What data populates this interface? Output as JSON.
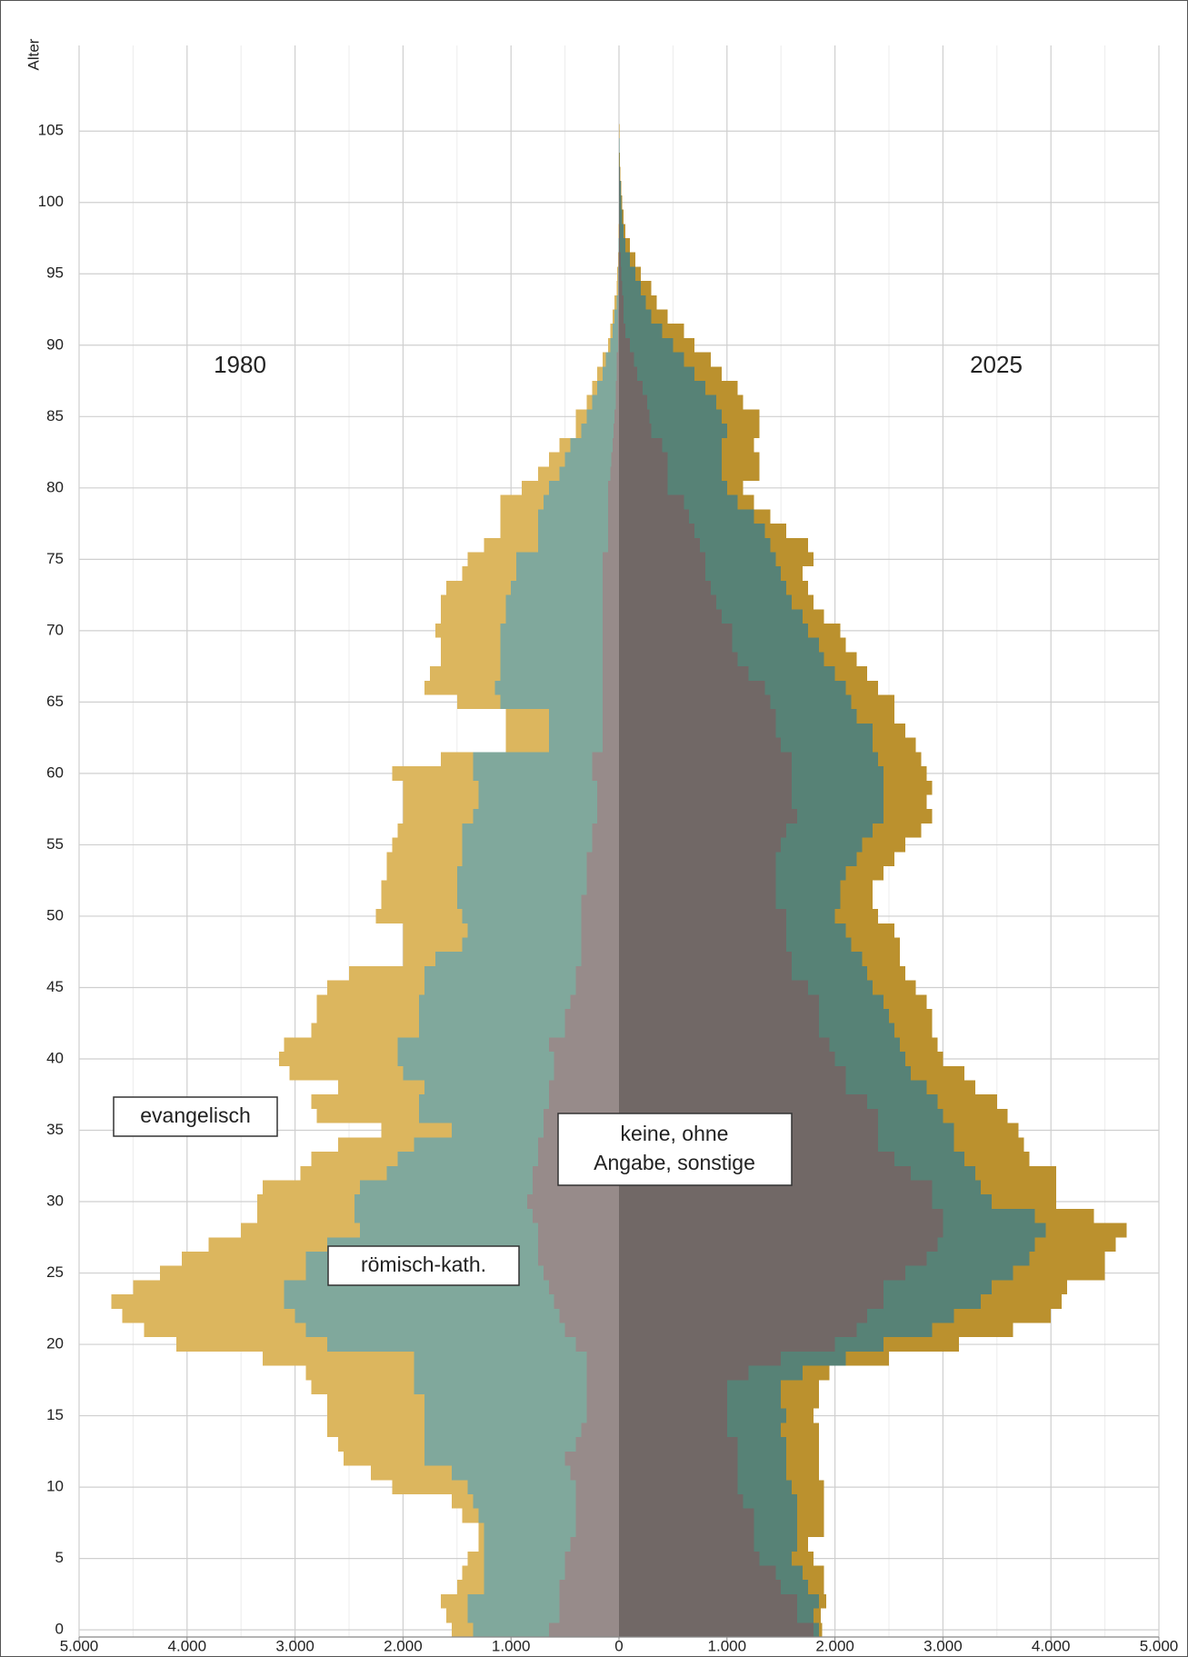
{
  "chart_data": {
    "type": "pyramid",
    "y_label": "Alter",
    "ylim": [
      -0.5,
      111
    ],
    "yticks": [
      0,
      5,
      10,
      15,
      20,
      25,
      30,
      35,
      40,
      45,
      50,
      55,
      60,
      65,
      70,
      75,
      80,
      85,
      90,
      95,
      100,
      105
    ],
    "xlim": [
      -5000,
      5000
    ],
    "xticks": [
      {
        "value": -5000,
        "label": "5.000"
      },
      {
        "value": -4000,
        "label": "4.000"
      },
      {
        "value": -3000,
        "label": "3.000"
      },
      {
        "value": -2000,
        "label": "2.000"
      },
      {
        "value": -1000,
        "label": "1.000"
      },
      0,
      {
        "value": 1000,
        "label": "1.000"
      },
      {
        "value": 2000,
        "label": "2.000"
      },
      {
        "value": 3000,
        "label": "3.000"
      },
      {
        "value": 4000,
        "label": "4.000"
      },
      {
        "value": 5000,
        "label": "5.000"
      }
    ],
    "x_minor_ticks": [
      -4500,
      -3500,
      -2500,
      -1500,
      -500,
      500,
      1500,
      2500,
      3500,
      4500
    ],
    "grid": true,
    "series": [
      {
        "name": [
          "keine, ohne",
          "Angabe, sonstige"
        ]
      },
      {
        "name": "römisch-kath."
      },
      {
        "name": "evangelisch"
      }
    ],
    "y": [
      0,
      1,
      2,
      3,
      4,
      5,
      6,
      7,
      8,
      9,
      10,
      11,
      12,
      13,
      14,
      15,
      16,
      17,
      18,
      19,
      20,
      21,
      22,
      23,
      24,
      25,
      26,
      27,
      28,
      29,
      30,
      31,
      32,
      33,
      34,
      35,
      36,
      37,
      38,
      39,
      40,
      41,
      42,
      43,
      44,
      45,
      46,
      47,
      48,
      49,
      50,
      51,
      52,
      53,
      54,
      55,
      56,
      57,
      58,
      59,
      60,
      61,
      62,
      63,
      64,
      65,
      66,
      67,
      68,
      69,
      70,
      71,
      72,
      73,
      74,
      75,
      76,
      77,
      78,
      79,
      80,
      81,
      82,
      83,
      84,
      85,
      86,
      87,
      88,
      89,
      90,
      91,
      92,
      93,
      94,
      95,
      96,
      97,
      98,
      99,
      100,
      101,
      102,
      103,
      104,
      105,
      106
    ],
    "panels": [
      {
        "label": "1980",
        "side": "left",
        "colors": [
          "#978b8a",
          "#80a89c",
          "#dcb65e"
        ],
        "values": [
          [
            650,
            550,
            550,
            550,
            500,
            500,
            450,
            400,
            400,
            400,
            400,
            450,
            500,
            400,
            350,
            300,
            300,
            300,
            300,
            300,
            400,
            500,
            550,
            600,
            650,
            700,
            750,
            750,
            750,
            800,
            850,
            800,
            800,
            750,
            750,
            700,
            700,
            650,
            650,
            600,
            600,
            650,
            500,
            500,
            450,
            400,
            400,
            350,
            350,
            350,
            350,
            350,
            300,
            300,
            300,
            250,
            250,
            200,
            200,
            200,
            250,
            250,
            150,
            150,
            150,
            150,
            150,
            150,
            150,
            150,
            150,
            150,
            150,
            150,
            150,
            150,
            100,
            100,
            100,
            100,
            100,
            80,
            70,
            60,
            50,
            40,
            30,
            30,
            20,
            20,
            10,
            10,
            10,
            5,
            5,
            5,
            3,
            2,
            1,
            1,
            0,
            0,
            0,
            0,
            0,
            0,
            0
          ],
          [
            700,
            850,
            850,
            700,
            750,
            750,
            800,
            850,
            900,
            950,
            1000,
            1100,
            1300,
            1400,
            1450,
            1500,
            1500,
            1600,
            1600,
            1600,
            2300,
            2400,
            2450,
            2500,
            2450,
            2200,
            2150,
            1950,
            1650,
            1650,
            1600,
            1600,
            1350,
            1300,
            1150,
            850,
            1150,
            1200,
            1150,
            1400,
            1450,
            1400,
            1350,
            1350,
            1400,
            1400,
            1400,
            1350,
            1100,
            1050,
            1100,
            1150,
            1200,
            1200,
            1150,
            1200,
            1200,
            1150,
            1100,
            1100,
            1100,
            1100,
            500,
            500,
            500,
            950,
            1000,
            950,
            950,
            950,
            950,
            900,
            900,
            850,
            800,
            800,
            650,
            650,
            650,
            600,
            550,
            470,
            430,
            390,
            300,
            260,
            220,
            170,
            130,
            100,
            70,
            50,
            30,
            15,
            5,
            5,
            2,
            1,
            1,
            0,
            0,
            0,
            0,
            0,
            0,
            0,
            0
          ],
          [
            200,
            200,
            250,
            250,
            200,
            150,
            50,
            50,
            150,
            200,
            700,
            750,
            750,
            800,
            900,
            900,
            900,
            950,
            1000,
            1400,
            1400,
            1500,
            1600,
            1600,
            1400,
            1350,
            1150,
            1100,
            1100,
            900,
            900,
            900,
            800,
            800,
            700,
            650,
            950,
            1000,
            800,
            1050,
            1100,
            1050,
            1000,
            950,
            950,
            900,
            700,
            300,
            550,
            600,
            800,
            700,
            700,
            650,
            700,
            650,
            600,
            650,
            700,
            700,
            750,
            300,
            400,
            400,
            400,
            400,
            650,
            650,
            550,
            550,
            600,
            600,
            600,
            600,
            500,
            450,
            500,
            350,
            350,
            400,
            250,
            200,
            150,
            100,
            50,
            100,
            50,
            50,
            50,
            30,
            20,
            20,
            20,
            20,
            10,
            5,
            5,
            2,
            1,
            1,
            0,
            0,
            0,
            0,
            0,
            0,
            0
          ]
        ]
      },
      {
        "label": "2025",
        "side": "right",
        "colors": [
          "#716866",
          "#578276",
          "#bb912e"
        ],
        "values": [
          [
            1800,
            1650,
            1650,
            1500,
            1450,
            1300,
            1250,
            1250,
            1250,
            1150,
            1100,
            1100,
            1100,
            1100,
            1000,
            1000,
            1000,
            1000,
            1200,
            1500,
            2000,
            2200,
            2300,
            2450,
            2450,
            2650,
            2850,
            2950,
            3000,
            3000,
            2900,
            2900,
            2700,
            2550,
            2400,
            2400,
            2400,
            2300,
            2100,
            2100,
            2000,
            1950,
            1850,
            1850,
            1850,
            1750,
            1600,
            1600,
            1550,
            1550,
            1550,
            1450,
            1450,
            1450,
            1450,
            1500,
            1550,
            1650,
            1600,
            1600,
            1600,
            1600,
            1500,
            1450,
            1450,
            1400,
            1350,
            1200,
            1100,
            1050,
            1050,
            950,
            900,
            850,
            800,
            800,
            750,
            700,
            650,
            600,
            450,
            450,
            450,
            400,
            300,
            280,
            260,
            220,
            170,
            140,
            100,
            60,
            40,
            40,
            30,
            20,
            15,
            10,
            8,
            6,
            5,
            4,
            3,
            2,
            2,
            1,
            1
          ],
          [
            50,
            150,
            200,
            250,
            250,
            300,
            400,
            400,
            400,
            500,
            500,
            450,
            450,
            450,
            500,
            550,
            500,
            500,
            500,
            600,
            450,
            700,
            800,
            900,
            1000,
            1000,
            950,
            900,
            950,
            850,
            550,
            450,
            600,
            650,
            700,
            700,
            600,
            650,
            750,
            600,
            650,
            650,
            700,
            650,
            600,
            600,
            700,
            650,
            600,
            550,
            450,
            600,
            600,
            650,
            750,
            750,
            800,
            800,
            850,
            850,
            850,
            800,
            850,
            900,
            750,
            750,
            750,
            800,
            800,
            800,
            700,
            750,
            700,
            700,
            700,
            650,
            650,
            650,
            600,
            500,
            550,
            500,
            500,
            550,
            700,
            670,
            640,
            580,
            530,
            460,
            400,
            340,
            260,
            210,
            170,
            130,
            85,
            50,
            32,
            24,
            15,
            11,
            7,
            4,
            2,
            1,
            0
          ],
          [
            30,
            70,
            70,
            150,
            200,
            200,
            100,
            250,
            250,
            250,
            300,
            300,
            300,
            300,
            350,
            250,
            350,
            350,
            250,
            400,
            700,
            750,
            900,
            750,
            700,
            850,
            700,
            750,
            750,
            550,
            600,
            700,
            750,
            600,
            650,
            600,
            600,
            550,
            450,
            500,
            350,
            350,
            350,
            400,
            400,
            400,
            350,
            350,
            450,
            450,
            400,
            300,
            300,
            350,
            350,
            400,
            450,
            450,
            400,
            450,
            400,
            400,
            400,
            300,
            350,
            400,
            300,
            300,
            300,
            250,
            300,
            200,
            200,
            200,
            200,
            350,
            350,
            200,
            150,
            150,
            150,
            350,
            350,
            300,
            300,
            350,
            250,
            300,
            250,
            250,
            200,
            200,
            150,
            100,
            100,
            50,
            50,
            40,
            20,
            10,
            10,
            5,
            4,
            2,
            1,
            1,
            1
          ]
        ]
      }
    ]
  }
}
